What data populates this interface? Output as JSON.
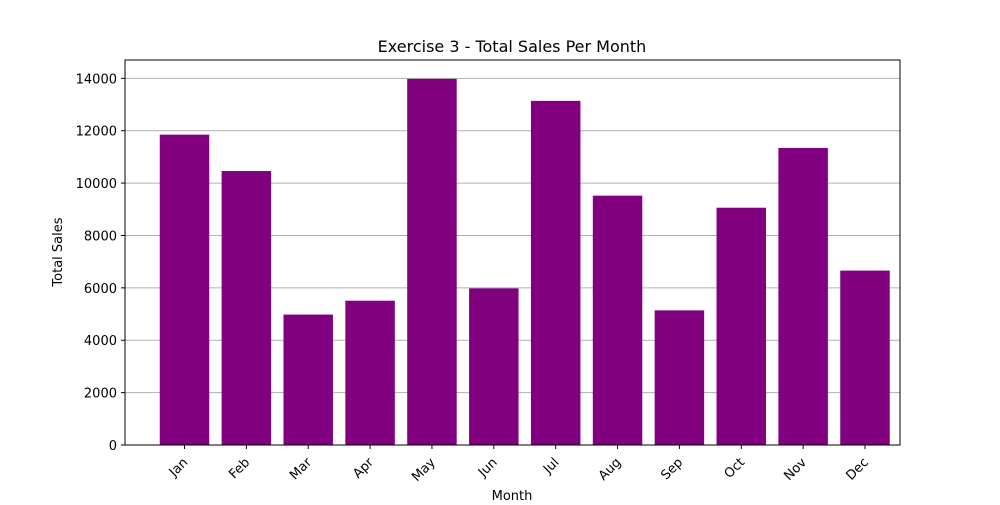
{
  "chart_data": {
    "type": "bar",
    "title": "Exercise 3 - Total Sales Per Month",
    "xlabel": "Month",
    "ylabel": "Total Sales",
    "categories": [
      "Jan",
      "Feb",
      "Mar",
      "Apr",
      "May",
      "Jun",
      "Jul",
      "Aug",
      "Sep",
      "Oct",
      "Nov",
      "Dec"
    ],
    "values": [
      11850,
      10460,
      4980,
      5510,
      13980,
      5980,
      13140,
      9520,
      5140,
      9060,
      11340,
      6660
    ],
    "ylim": [
      0,
      14700
    ],
    "yticks": [
      0,
      2000,
      4000,
      6000,
      8000,
      10000,
      12000,
      14000
    ],
    "grid": "horizontal",
    "bar_color": "#800080",
    "legend": "none"
  }
}
